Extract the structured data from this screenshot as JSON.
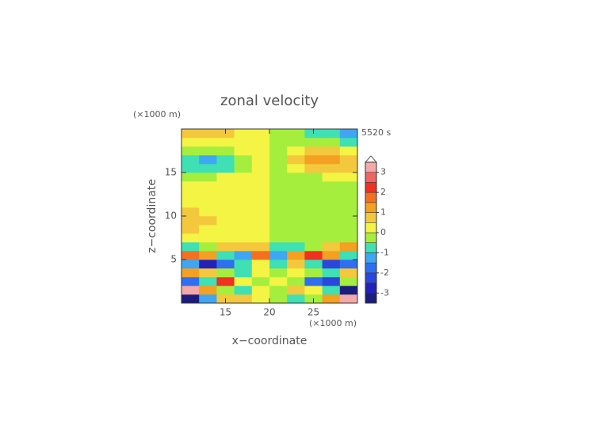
{
  "chart_data": {
    "type": "contour",
    "title": "zonal velocity",
    "x_label": "x−coordinate",
    "y_label": "z−coordinate",
    "x_unit": "(×1000 m)",
    "y_unit": "(×1000 m)",
    "annotation": "5520 s",
    "xlim": [
      10,
      30
    ],
    "ylim": [
      0,
      20
    ],
    "xticks": [
      15,
      20,
      25
    ],
    "yticks": [
      5,
      10,
      15
    ],
    "x": [
      11,
      13,
      15,
      17,
      19,
      21,
      23,
      25,
      27,
      29
    ],
    "z": [
      0.5,
      1.5,
      2.5,
      3.5,
      4.5,
      5.5,
      6.5,
      7.5,
      8.5,
      9.5,
      10.5,
      11.5,
      12.5,
      13.5,
      14.5,
      15.5,
      16.5,
      17.5,
      18.5,
      19.5
    ],
    "values": [
      [
        -3.3,
        -1.4,
        0.5,
        0.8,
        0.2,
        -0.2,
        -0.8,
        -0.5,
        1.2,
        3.3
      ],
      [
        3.2,
        1.0,
        -0.4,
        -0.8,
        0.2,
        -0.2,
        0.5,
        0.4,
        -0.7,
        -3.3
      ],
      [
        -1.8,
        -0.7,
        2.0,
        0.2,
        -0.4,
        0.4,
        -0.3,
        -1.8,
        -2.2,
        -0.5
      ],
      [
        1.4,
        0.8,
        -0.5,
        -0.6,
        0.3,
        -0.3,
        0.4,
        -0.3,
        -0.8,
        0.7
      ],
      [
        -1.5,
        -2.6,
        -2.0,
        -0.8,
        0.4,
        -0.6,
        0.6,
        -0.7,
        -2.4,
        -1.8
      ],
      [
        1.8,
        1.0,
        -0.8,
        -1.2,
        1.7,
        -1.5,
        1.0,
        2.2,
        1.2,
        -0.8
      ],
      [
        -0.6,
        -0.4,
        0.6,
        0.9,
        0.5,
        -0.6,
        -0.8,
        -0.4,
        0.7,
        1.0
      ],
      [
        0.3,
        0.2,
        0.2,
        0.3,
        0.1,
        -0.1,
        -0.2,
        -0.3,
        -0.3,
        -0.2
      ],
      [
        0.5,
        0.4,
        0.3,
        0.2,
        0.2,
        -0.2,
        -0.2,
        -0.2,
        -0.3,
        -0.3
      ],
      [
        0.6,
        0.5,
        0.3,
        0.2,
        0.2,
        -0.2,
        -0.2,
        -0.2,
        -0.3,
        -0.4
      ],
      [
        0.5,
        0.4,
        0.3,
        0.2,
        0.2,
        -0.2,
        -0.2,
        -0.2,
        -0.3,
        -0.4
      ],
      [
        0.4,
        0.3,
        0.2,
        0.2,
        0.2,
        -0.2,
        -0.2,
        -0.2,
        -0.3,
        -0.3
      ],
      [
        0.3,
        0.3,
        0.2,
        0.2,
        0.2,
        -0.2,
        -0.2,
        -0.3,
        -0.3,
        -0.3
      ],
      [
        0.1,
        0.2,
        0.2,
        0.2,
        0.2,
        -0.2,
        -0.2,
        -0.3,
        -0.3,
        -0.1
      ],
      [
        -0.3,
        -0.2,
        0.1,
        0.2,
        0.2,
        -0.2,
        -0.2,
        -0.1,
        0.1,
        0.2
      ],
      [
        -0.7,
        -0.9,
        -0.7,
        -0.2,
        0.1,
        -0.1,
        0.4,
        0.8,
        0.8,
        0.5
      ],
      [
        -0.8,
        -1.2,
        -1.0,
        -0.3,
        0.1,
        -0.1,
        0.6,
        1.1,
        1.1,
        0.7
      ],
      [
        -0.3,
        -0.2,
        -0.1,
        0.1,
        0.1,
        -0.1,
        0.3,
        0.6,
        0.6,
        0.4
      ],
      [
        0.4,
        0.4,
        0.3,
        0.2,
        0.1,
        -0.1,
        -0.3,
        -0.4,
        -0.5,
        -0.6
      ],
      [
        0.7,
        0.7,
        0.6,
        0.3,
        0.2,
        -0.2,
        -0.4,
        -0.7,
        -1.0,
        -1.3
      ]
    ],
    "colorbar": {
      "levels": [
        -3.5,
        -3,
        -2.5,
        -2,
        -1.5,
        -1,
        -0.5,
        0,
        0.5,
        1,
        1.5,
        2,
        2.5,
        3,
        3.5
      ],
      "colors": [
        "#1c1c7c",
        "#2222b8",
        "#2a46dc",
        "#2f6ef0",
        "#3ea6f2",
        "#3ee0b4",
        "#a6ee3e",
        "#f4f444",
        "#f4c83c",
        "#f4a020",
        "#f47020",
        "#f03020",
        "#f06464",
        "#f4a8a8"
      ],
      "over_color": "#ffffff",
      "ticks": [
        -3,
        -2,
        -1,
        0,
        1,
        2,
        3
      ]
    }
  }
}
